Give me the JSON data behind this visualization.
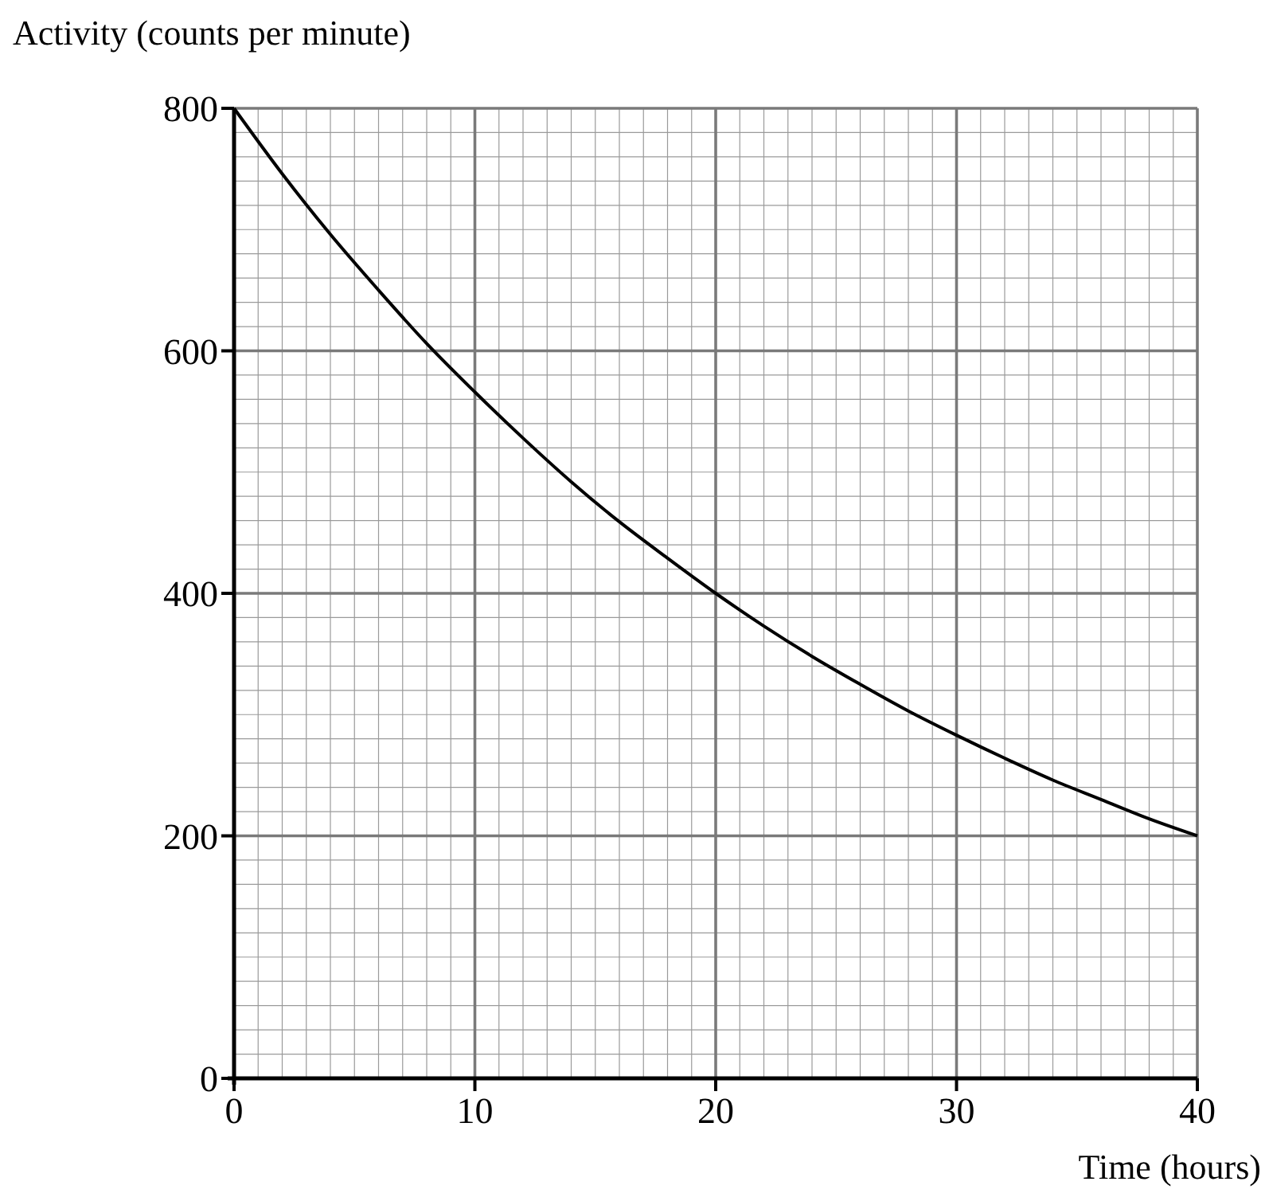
{
  "chart_data": {
    "type": "line",
    "xlabel": "Time (hours)",
    "ylabel": "Activity (counts per minute)",
    "x": [
      0,
      2,
      4,
      6,
      8,
      10,
      12,
      14,
      16,
      18,
      20,
      22,
      24,
      26,
      28,
      30,
      32,
      34,
      36,
      38,
      40
    ],
    "series": [
      {
        "color": "#000000",
        "values": [
          800,
          746,
          696,
          650,
          606,
          566,
          528,
          492,
          459,
          429,
          400,
          373,
          348,
          325,
          303,
          283,
          264,
          246,
          230,
          214,
          200
        ]
      }
    ],
    "xlim": [
      0,
      40
    ],
    "xticks": [
      0,
      10,
      20,
      30,
      40
    ],
    "ylim": [
      0,
      800
    ],
    "yticks": [
      0,
      200,
      400,
      600,
      800
    ],
    "grid": true,
    "marker": "none",
    "line_style": "solid"
  }
}
